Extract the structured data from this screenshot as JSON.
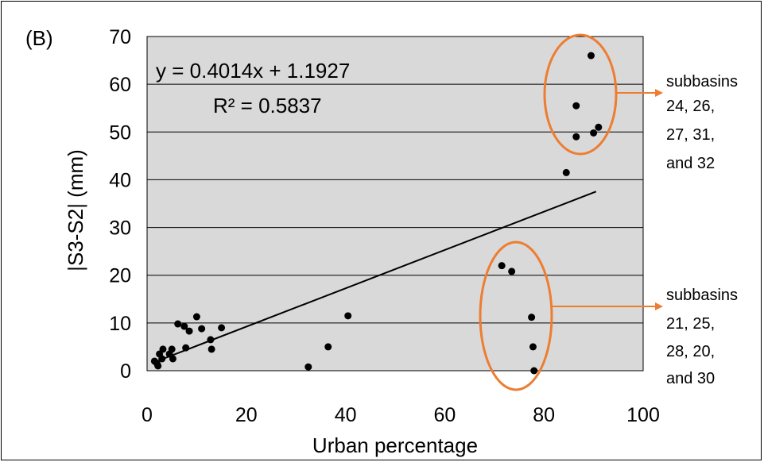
{
  "panel_label": "(B)",
  "equation": "y = 0.4014x + 1.1927",
  "r_squared": "R² = 0.5837",
  "colors": {
    "plot_bg": "#d9d9d9",
    "accent": "#ed7d31",
    "points": "#000000"
  },
  "chart_data": {
    "type": "scatter",
    "title": "",
    "xlabel": "Urban percentage",
    "ylabel": "|S3-S2| (mm)",
    "xlim": [
      0,
      100
    ],
    "ylim": [
      0,
      70
    ],
    "x_ticks": [
      0,
      20,
      40,
      60,
      80,
      100
    ],
    "y_ticks": [
      0,
      10,
      20,
      30,
      40,
      50,
      60,
      70
    ],
    "grid": "horizontal",
    "points": [
      {
        "x": 1.5,
        "y": 2.0
      },
      {
        "x": 2.0,
        "y": 1.5
      },
      {
        "x": 2.2,
        "y": 1.0
      },
      {
        "x": 2.5,
        "y": 3.5
      },
      {
        "x": 3.0,
        "y": 2.5
      },
      {
        "x": 3.2,
        "y": 4.5
      },
      {
        "x": 4.5,
        "y": 3.5
      },
      {
        "x": 5.0,
        "y": 4.5
      },
      {
        "x": 5.2,
        "y": 2.5
      },
      {
        "x": 6.2,
        "y": 9.8
      },
      {
        "x": 7.5,
        "y": 9.3
      },
      {
        "x": 7.8,
        "y": 4.8
      },
      {
        "x": 8.5,
        "y": 8.3
      },
      {
        "x": 10.0,
        "y": 11.3
      },
      {
        "x": 11.0,
        "y": 8.8
      },
      {
        "x": 12.8,
        "y": 6.5
      },
      {
        "x": 13.0,
        "y": 4.5
      },
      {
        "x": 15.0,
        "y": 9.0
      },
      {
        "x": 32.5,
        "y": 0.8
      },
      {
        "x": 36.5,
        "y": 5.0
      },
      {
        "x": 40.5,
        "y": 11.5
      },
      {
        "x": 71.5,
        "y": 22.0
      },
      {
        "x": 73.5,
        "y": 20.8
      },
      {
        "x": 77.5,
        "y": 11.2
      },
      {
        "x": 77.8,
        "y": 5.0
      },
      {
        "x": 78.0,
        "y": 0.0
      },
      {
        "x": 84.5,
        "y": 41.5
      },
      {
        "x": 86.5,
        "y": 55.5
      },
      {
        "x": 86.5,
        "y": 49.0
      },
      {
        "x": 89.5,
        "y": 66.0
      },
      {
        "x": 90.0,
        "y": 49.8
      },
      {
        "x": 91.0,
        "y": 51.0
      }
    ],
    "trendline": {
      "x_start": 2,
      "x_end": 90.5,
      "slope": 0.4014,
      "intercept": 1.1927
    },
    "annotations": [
      {
        "lines": [
          "subbasins",
          "24, 26,",
          "27, 31,",
          "and 32"
        ]
      },
      {
        "lines": [
          "subbasins",
          "21, 25,",
          "28, 20,",
          "and 30"
        ]
      }
    ]
  }
}
